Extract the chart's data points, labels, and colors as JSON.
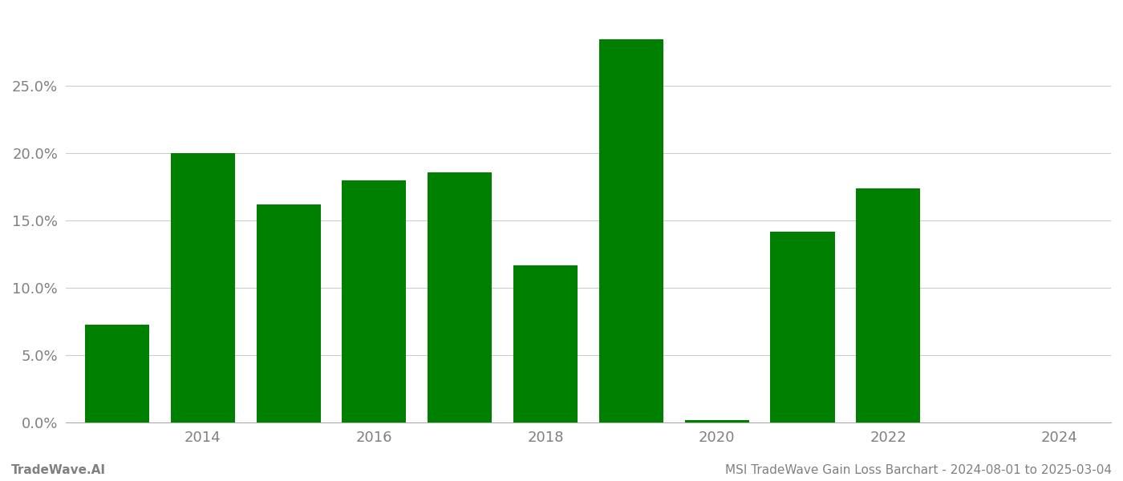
{
  "years": [
    2013,
    2014,
    2015,
    2016,
    2017,
    2018,
    2019,
    2020,
    2021,
    2022,
    2023
  ],
  "values": [
    0.073,
    0.2,
    0.162,
    0.18,
    0.186,
    0.117,
    0.285,
    0.002,
    0.142,
    0.174,
    0.0
  ],
  "bar_color": "#008000",
  "background_color": "#ffffff",
  "grid_color": "#cccccc",
  "axis_color": "#aaaaaa",
  "tick_label_color": "#808080",
  "xlim": [
    2012.4,
    2024.6
  ],
  "ylim": [
    0,
    0.305
  ],
  "yticks": [
    0.0,
    0.05,
    0.1,
    0.15,
    0.2,
    0.25
  ],
  "xticks": [
    2014,
    2016,
    2018,
    2020,
    2022,
    2024
  ],
  "footer_left": "TradeWave.AI",
  "footer_right": "MSI TradeWave Gain Loss Barchart - 2024-08-01 to 2025-03-04",
  "bar_width": 0.75,
  "tick_fontsize": 13,
  "footer_fontsize": 11
}
